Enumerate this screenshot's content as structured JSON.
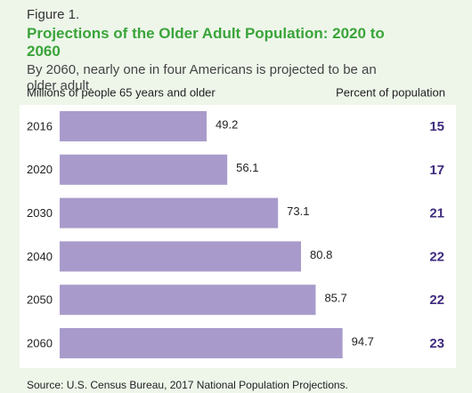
{
  "chart_data": {
    "type": "bar",
    "figure_label": "Figure 1.",
    "title": "Projections of the Older Adult Population: 2020 to 2060",
    "subtitle": "By 2060, nearly one in four Americans is projected to be an older adult.",
    "categories": [
      "2016",
      "2020",
      "2030",
      "2040",
      "2050",
      "2060"
    ],
    "series": [
      {
        "name": "Millions of people 65 years and older",
        "color": "#a89bcb",
        "values": [
          49.2,
          56.1,
          73.1,
          80.8,
          85.7,
          94.7
        ]
      }
    ],
    "percent": {
      "name": "Percent of population",
      "color": "#3f2b7e",
      "values": [
        15,
        17,
        21,
        22,
        22,
        23
      ]
    },
    "source": "Source: U.S. Census Bureau, 2017 National Population Projections."
  }
}
